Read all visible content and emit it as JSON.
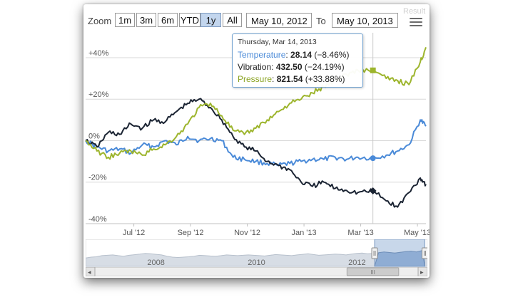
{
  "toolbar": {
    "zoom_label": "Zoom",
    "zoom_buttons": [
      "1m",
      "3m",
      "6m",
      "YTD",
      "1y",
      "All"
    ],
    "selected_zoom": "1y",
    "from_date": "May 10, 2012",
    "to_label": "To",
    "to_date": "May 10, 2013",
    "result_text": "Result"
  },
  "colors": {
    "temperature": "#4a8ad8",
    "vibration": "#1b2433",
    "pressure": "#9db52d",
    "navigator_fill": "#d7dde5",
    "navigator_selected": "#9ab6d9"
  },
  "icons": {
    "menu": "hamburger-menu-icon"
  },
  "tooltip": {
    "date": "Thursday, Mar 14, 2013",
    "rows": [
      {
        "name": "Temperature",
        "value": "28.14",
        "change": "(−8.46%)",
        "color": "#4a8ad8"
      },
      {
        "name": "Vibration",
        "value": "432.50",
        "change": "(−24.19%)",
        "color": "#222222"
      },
      {
        "name": "Pressure",
        "value": "821.54",
        "change": "(+33.88%)",
        "color": "#8aa321"
      }
    ]
  },
  "chart_data": {
    "type": "line",
    "title": "",
    "xlabel": "",
    "ylabel": "",
    "ylim": [
      -40,
      52
    ],
    "y_ticks": [
      "+40%",
      "+20%",
      "0%",
      "-20%",
      "-40%"
    ],
    "y_tick_values": [
      40,
      20,
      0,
      -20,
      -40
    ],
    "x_ticks": [
      "Jul '12",
      "Sep '12",
      "Nov '12",
      "Jan '13",
      "Mar '13",
      "May '13"
    ],
    "x_tick_values": [
      1.7,
      3.7,
      5.7,
      7.7,
      9.7,
      11.7
    ],
    "x_domain": [
      0,
      12
    ],
    "crosshair_x": 10.13,
    "series": [
      {
        "name": "Temperature",
        "x": [
          0,
          0.4,
          0.8,
          1.2,
          1.6,
          2.0,
          2.4,
          2.8,
          3.2,
          3.6,
          4.0,
          4.4,
          4.8,
          5.2,
          5.6,
          6.0,
          6.4,
          6.8,
          7.2,
          7.6,
          8.0,
          8.4,
          8.8,
          9.2,
          9.6,
          10.13,
          10.6,
          11.0,
          11.4,
          11.8,
          12.0
        ],
        "values": [
          0,
          -3,
          -5,
          -4,
          -6,
          -2,
          -3,
          0,
          -2,
          2,
          0,
          1,
          0,
          -8,
          -9,
          -10,
          -11,
          -12,
          -11,
          -10,
          -9,
          -9,
          -8,
          -9,
          -8,
          -8.46,
          -7,
          -5,
          -2,
          10,
          7
        ]
      },
      {
        "name": "Vibration",
        "x": [
          0,
          0.4,
          0.8,
          1.2,
          1.6,
          2.0,
          2.4,
          2.8,
          3.2,
          3.6,
          4.0,
          4.4,
          4.8,
          5.2,
          5.6,
          6.0,
          6.4,
          6.8,
          7.2,
          7.6,
          8.0,
          8.4,
          8.8,
          9.2,
          9.6,
          10.13,
          10.6,
          11.0,
          11.4,
          11.8,
          12.0
        ],
        "values": [
          0,
          -3,
          4,
          3,
          8,
          6,
          10,
          9,
          14,
          18,
          20,
          16,
          10,
          2,
          -3,
          -5,
          -10,
          -12,
          -14,
          -20,
          -22,
          -20,
          -23,
          -24,
          -25,
          -24.19,
          -29,
          -32,
          -25,
          -18,
          -21
        ]
      },
      {
        "name": "Pressure",
        "x": [
          0,
          0.4,
          0.8,
          1.2,
          1.6,
          2.0,
          2.4,
          2.8,
          3.2,
          3.6,
          4.0,
          4.4,
          4.8,
          5.2,
          5.6,
          6.0,
          6.4,
          6.8,
          7.2,
          7.6,
          8.0,
          8.4,
          8.8,
          9.2,
          9.6,
          10.13,
          10.6,
          11.0,
          11.4,
          11.8,
          12.0
        ],
        "values": [
          0,
          -5,
          -8,
          -6,
          -5,
          -7,
          -4,
          -2,
          2,
          8,
          16,
          18,
          12,
          5,
          3,
          6,
          10,
          14,
          18,
          20,
          23,
          26,
          29,
          32,
          34,
          33.88,
          30,
          29,
          27,
          38,
          45
        ]
      }
    ]
  },
  "navigator": {
    "labels": [
      "2008",
      "2010",
      "2012"
    ],
    "label_values": [
      2008,
      2010,
      2012
    ],
    "range": [
      2006.6,
      2013.4
    ],
    "selected_range": [
      2012.35,
      2013.35
    ],
    "profile": [
      0.45,
      0.5,
      0.52,
      0.58,
      0.6,
      0.62,
      0.58,
      0.55,
      0.6,
      0.63,
      0.66,
      0.7,
      0.68,
      0.65,
      0.62,
      0.55,
      0.5,
      0.48,
      0.5,
      0.52,
      0.55,
      0.6,
      0.58,
      0.56,
      0.55,
      0.58,
      0.62,
      0.6,
      0.58,
      0.6,
      0.62,
      0.6,
      0.58,
      0.56,
      0.6,
      0.64,
      0.62,
      0.6,
      0.58,
      0.62,
      0.65,
      0.68,
      0.64,
      0.6,
      0.62,
      0.64,
      0.66,
      0.65,
      0.62,
      0.66,
      0.7,
      0.72,
      0.68,
      0.7,
      0.74,
      0.78,
      0.75,
      0.72,
      0.76,
      0.8,
      0.82,
      0.78,
      0.85,
      0.9
    ]
  },
  "scrollbar": {
    "left_arrow": "◂",
    "right_arrow": "▸",
    "thumb_grip": "III",
    "thumb_fraction": [
      0.78,
      0.94
    ]
  }
}
